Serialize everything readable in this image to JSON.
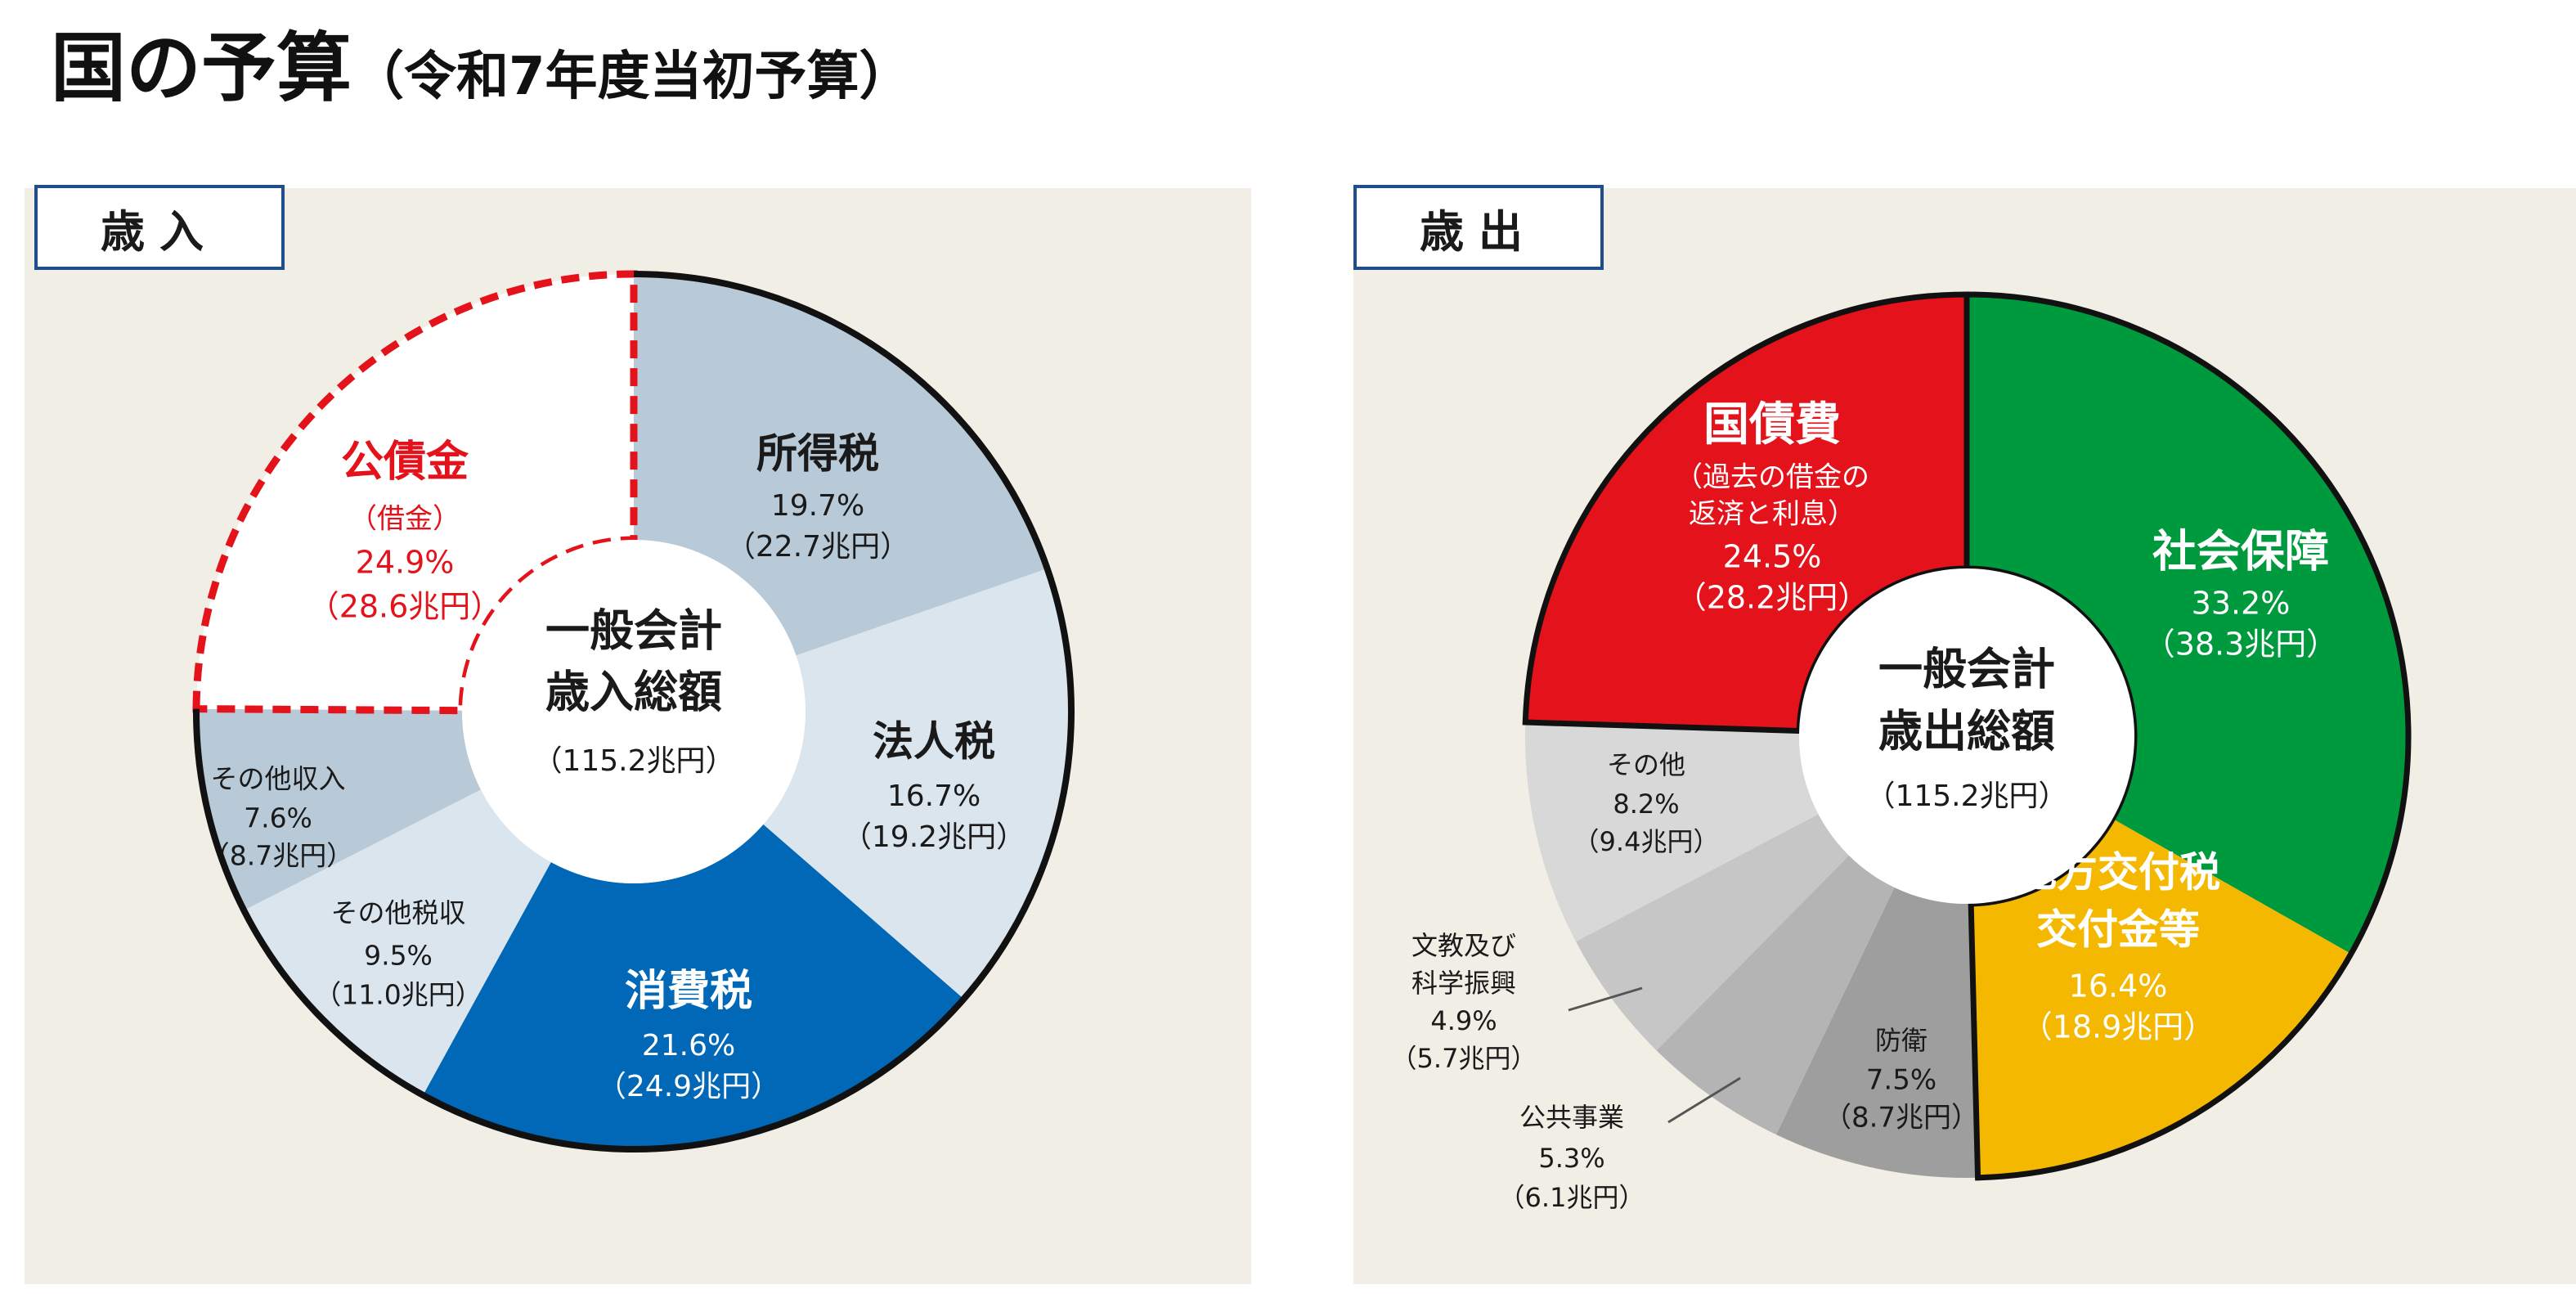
{
  "title": {
    "main": "国の予算",
    "sub": "（令和7年度当初予算）"
  },
  "chart_data": [
    {
      "type": "pie",
      "panel_label": "歳入",
      "center": {
        "line1": "一般会計",
        "line2": "歳入総額",
        "amount": "（115.2兆円）"
      },
      "segments": [
        {
          "key": "income_tax",
          "name": "所得税",
          "percent": 19.7,
          "pct_label": "19.7%",
          "amount_label": "（22.7兆円）",
          "color": "#b8cad8",
          "text_color": "#1a1a1a"
        },
        {
          "key": "corp_tax",
          "name": "法人税",
          "percent": 16.7,
          "pct_label": "16.7%",
          "amount_label": "（19.2兆円）",
          "color": "#dbe5ee",
          "text_color": "#1a1a1a"
        },
        {
          "key": "consumption_tax",
          "name": "消費税",
          "percent": 21.6,
          "pct_label": "21.6%",
          "amount_label": "（24.9兆円）",
          "color": "#0068b7",
          "text_color": "#ffffff"
        },
        {
          "key": "other_tax",
          "name": "その他税収",
          "percent": 9.5,
          "pct_label": "9.5%",
          "amount_label": "（11.0兆円）",
          "color": "#dbe5ee",
          "text_color": "#1a1a1a"
        },
        {
          "key": "other_income",
          "name": "その他収入",
          "percent": 7.6,
          "pct_label": "7.6%",
          "amount_label": "（8.7兆円）",
          "color": "#b8cad8",
          "text_color": "#1a1a1a"
        },
        {
          "key": "bonds",
          "name": "公債金",
          "sub": "（借金）",
          "percent": 24.9,
          "pct_label": "24.9%",
          "amount_label": "（28.6兆円）",
          "color": "#ffffff",
          "text_color": "#e3121b"
        }
      ]
    },
    {
      "type": "pie",
      "panel_label": "歳出",
      "center": {
        "line1": "一般会計",
        "line2": "歳出総額",
        "amount": "（115.2兆円）"
      },
      "segments": [
        {
          "key": "social_security",
          "name": "社会保障",
          "percent": 33.2,
          "pct_label": "33.2%",
          "amount_label": "（38.3兆円）",
          "color": "#009a3e",
          "text_color": "#ffffff"
        },
        {
          "key": "local_allocation",
          "name": "地方交付税",
          "name2": "交付金等",
          "percent": 16.4,
          "pct_label": "16.4%",
          "amount_label": "（18.9兆円）",
          "color": "#f5b800",
          "text_color": "#ffffff"
        },
        {
          "key": "defense",
          "name": "防衛",
          "percent": 7.5,
          "pct_label": "7.5%",
          "amount_label": "（8.7兆円）",
          "color": "#9e9e9e",
          "text_color": "#1a1a1a"
        },
        {
          "key": "public_works",
          "name": "公共事業",
          "percent": 5.3,
          "pct_label": "5.3%",
          "amount_label": "（6.1兆円）",
          "color": "#b4b4b4",
          "text_color": "#1a1a1a"
        },
        {
          "key": "education_science",
          "name": "文教及び",
          "name2": "科学振興",
          "percent": 4.9,
          "pct_label": "4.9%",
          "amount_label": "（5.7兆円）",
          "color": "#c6c6c6",
          "text_color": "#1a1a1a"
        },
        {
          "key": "others",
          "name": "その他",
          "percent": 8.2,
          "pct_label": "8.2%",
          "amount_label": "（9.4兆円）",
          "color": "#d8d8d8",
          "text_color": "#1a1a1a"
        },
        {
          "key": "debt_service",
          "name": "国債費",
          "sub": "（過去の借金の",
          "sub2": "返済と利息）",
          "percent": 24.5,
          "pct_label": "24.5%",
          "amount_label": "（28.2兆円）",
          "color": "#e3121b",
          "text_color": "#ffffff"
        }
      ]
    }
  ]
}
